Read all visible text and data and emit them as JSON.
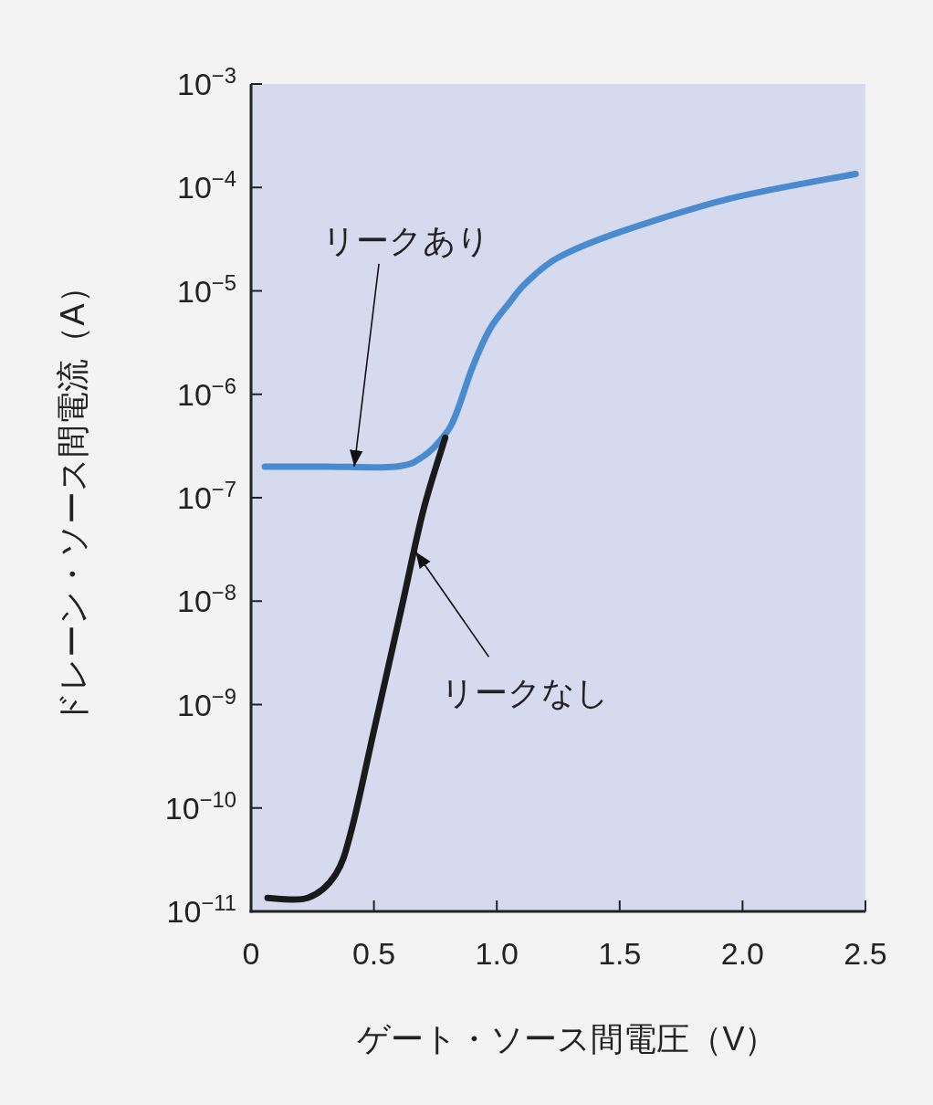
{
  "chart_data": {
    "type": "line",
    "xlabel": "ゲート・ソース間電圧（V）",
    "ylabel": "ドレーン・ソース間電流（A）",
    "log": "y",
    "grid": false,
    "marker": "none",
    "line_style": "solid",
    "xlim": [
      0,
      2.5
    ],
    "xticks": [
      0,
      0.5,
      {
        "value": 1,
        "label": "1.0"
      },
      1.5,
      {
        "value": 2,
        "label": "2.0"
      },
      2.5
    ],
    "ylim": [
      1e-11,
      0.001
    ],
    "yticks": [
      {
        "value": 1e-11,
        "label": "10$^{−11}$"
      },
      {
        "value": 1e-10,
        "label": "10$^{−10}$"
      },
      {
        "value": 1e-09,
        "label": "10$^{−9}$"
      },
      {
        "value": 1e-08,
        "label": "10$^{−8}$"
      },
      {
        "value": 1e-07,
        "label": "10$^{−7}$"
      },
      {
        "value": 1e-06,
        "label": "10$^{−6}$"
      },
      {
        "value": 1e-05,
        "label": "10$^{−5}$"
      },
      {
        "value": 0.0001,
        "label": "10$^{−4}$"
      },
      {
        "value": 0.001,
        "label": "10$^{−3}$"
      }
    ],
    "series": [
      {
        "color": "#4a8bcf",
        "x": [
          0.056,
          0.3,
          0.59,
          0.7,
          0.79,
          0.836,
          0.9,
          0.97,
          1.05,
          1.12,
          1.25,
          1.5,
          1.95,
          2.46
        ],
        "values": [
          2e-07,
          2e-07,
          2e-07,
          2.5e-07,
          4.1e-07,
          6.6e-07,
          1.8e-06,
          4.2e-06,
          7.6e-06,
          1.2e-05,
          2.1e-05,
          3.7e-05,
          7.8e-05,
          0.000135
        ]
      },
      {
        "color": "#1a1a1a",
        "x": [
          0.067,
          0.23,
          0.345,
          0.41,
          0.5,
          0.61,
          0.7,
          0.79
        ],
        "values": [
          1.35e-11,
          1.35e-11,
          2.3e-11,
          6.3e-11,
          5.6e-10,
          8.1e-09,
          7.4e-08,
          3.8e-07
        ]
      }
    ],
    "annotations": [
      {
        "text": "リークあり",
        "x": 0.42,
        "y": 2e-07
      },
      {
        "text": "リークなし",
        "x": 0.67,
        "y": 3e-08
      }
    ]
  }
}
